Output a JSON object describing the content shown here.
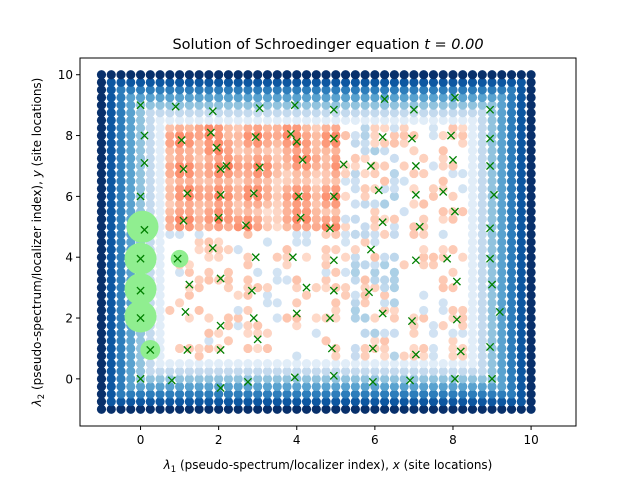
{
  "chart_data": {
    "type": "scatter",
    "title": "Solution of Schroedinger equation t = 0.00",
    "title_main": "Solution of Schroedinger equation ",
    "title_math": "t = 0.00",
    "xlabel_parts": [
      "λ",
      "1",
      " (pseudo-spectrum/localizer index), ",
      "x",
      " (site locations)"
    ],
    "ylabel_parts": [
      "λ",
      "2",
      " (pseudo-spectrum/localizer index), ",
      "y",
      " (site locations)"
    ],
    "xlim": [
      -1.55,
      11.15
    ],
    "ylim": [
      -1.55,
      10.55
    ],
    "xticks": [
      0,
      2,
      4,
      6,
      8,
      10
    ],
    "yticks": [
      0,
      2,
      4,
      6,
      8,
      10
    ],
    "tick_labels_x": [
      "0",
      "2",
      "4",
      "6",
      "8",
      "10"
    ],
    "tick_labels_y": [
      "0",
      "2",
      "4",
      "6",
      "8",
      "10"
    ],
    "pseudo_spectrum_grid": {
      "x_range": [
        -1,
        10
      ],
      "y_range": [
        -1,
        10
      ],
      "step": 0.25,
      "colormap_negative": "Blues",
      "colormap_positive": "Reds",
      "note": "Blue dots = localizer gap (topologically trivial region near boundary); red/orange = spectral concentration near sites"
    },
    "sites": {
      "marker": "x",
      "color": "#008000",
      "points": [
        [
          0.0,
          9.0
        ],
        [
          0.1,
          8.0
        ],
        [
          0.1,
          7.1
        ],
        [
          0.0,
          6.0
        ],
        [
          0.1,
          4.9
        ],
        [
          0.0,
          3.95
        ],
        [
          0.0,
          2.9
        ],
        [
          0.0,
          2.0
        ],
        [
          0.25,
          0.95
        ],
        [
          0.0,
          0.0
        ],
        [
          0.9,
          8.95
        ],
        [
          1.05,
          7.85
        ],
        [
          1.1,
          6.9
        ],
        [
          1.2,
          6.1
        ],
        [
          1.1,
          5.2
        ],
        [
          0.95,
          3.95
        ],
        [
          1.25,
          3.1
        ],
        [
          1.15,
          2.2
        ],
        [
          1.2,
          0.95
        ],
        [
          0.8,
          -0.05
        ],
        [
          1.85,
          8.8
        ],
        [
          1.8,
          8.1
        ],
        [
          1.95,
          7.6
        ],
        [
          2.05,
          6.9
        ],
        [
          2.2,
          7.0
        ],
        [
          2.05,
          6.05
        ],
        [
          2.0,
          5.3
        ],
        [
          1.85,
          4.3
        ],
        [
          2.05,
          3.3
        ],
        [
          2.05,
          1.75
        ],
        [
          2.05,
          0.95
        ],
        [
          2.05,
          -0.3
        ],
        [
          3.05,
          8.9
        ],
        [
          2.95,
          7.95
        ],
        [
          3.05,
          6.95
        ],
        [
          2.9,
          6.1
        ],
        [
          2.7,
          5.05
        ],
        [
          2.95,
          4.0
        ],
        [
          2.85,
          2.9
        ],
        [
          2.9,
          2.0
        ],
        [
          3.0,
          1.3
        ],
        [
          2.75,
          -0.1
        ],
        [
          3.95,
          9.0
        ],
        [
          3.85,
          8.05
        ],
        [
          4.0,
          7.8
        ],
        [
          4.15,
          7.2
        ],
        [
          4.05,
          6.0
        ],
        [
          4.1,
          5.3
        ],
        [
          3.9,
          4.0
        ],
        [
          4.25,
          3.0
        ],
        [
          4.0,
          2.15
        ],
        [
          3.95,
          0.05
        ],
        [
          4.95,
          8.85
        ],
        [
          4.95,
          7.9
        ],
        [
          5.2,
          7.05
        ],
        [
          4.95,
          6.0
        ],
        [
          4.85,
          4.95
        ],
        [
          4.95,
          3.9
        ],
        [
          4.95,
          2.9
        ],
        [
          4.85,
          2.0
        ],
        [
          4.9,
          1.0
        ],
        [
          4.95,
          0.1
        ],
        [
          6.25,
          9.2
        ],
        [
          6.2,
          7.95
        ],
        [
          5.9,
          7.0
        ],
        [
          6.1,
          6.2
        ],
        [
          6.2,
          5.15
        ],
        [
          5.9,
          4.25
        ],
        [
          5.85,
          2.85
        ],
        [
          6.2,
          2.15
        ],
        [
          5.95,
          1.0
        ],
        [
          5.95,
          -0.1
        ],
        [
          7.0,
          8.85
        ],
        [
          6.95,
          7.9
        ],
        [
          7.05,
          7.0
        ],
        [
          7.05,
          6.05
        ],
        [
          7.15,
          5.0
        ],
        [
          7.05,
          3.9
        ],
        [
          6.95,
          1.9
        ],
        [
          7.05,
          0.8
        ],
        [
          6.9,
          -0.05
        ],
        [
          8.05,
          9.25
        ],
        [
          7.95,
          8.0
        ],
        [
          8.0,
          7.2
        ],
        [
          7.75,
          6.15
        ],
        [
          8.05,
          5.5
        ],
        [
          7.85,
          3.95
        ],
        [
          8.1,
          3.2
        ],
        [
          8.1,
          1.95
        ],
        [
          8.2,
          0.9
        ],
        [
          8.05,
          0.0
        ],
        [
          8.95,
          8.85
        ],
        [
          8.95,
          7.9
        ],
        [
          8.95,
          7.0
        ],
        [
          9.05,
          6.05
        ],
        [
          8.95,
          4.95
        ],
        [
          8.95,
          3.95
        ],
        [
          9.0,
          3.1
        ],
        [
          9.2,
          2.2
        ],
        [
          8.95,
          1.05
        ],
        [
          9.0,
          0.0
        ]
      ]
    },
    "wavefunction": {
      "color": "#90ee90",
      "points": [
        {
          "x": 0.05,
          "y": 5.0,
          "amplitude": 1.0
        },
        {
          "x": 0.0,
          "y": 3.95,
          "amplitude": 1.0
        },
        {
          "x": 0.0,
          "y": 2.95,
          "amplitude": 1.0
        },
        {
          "x": 0.0,
          "y": 2.05,
          "amplitude": 1.0
        },
        {
          "x": 0.25,
          "y": 0.95,
          "amplitude": 0.45
        },
        {
          "x": 1.0,
          "y": 3.95,
          "amplitude": 0.35
        }
      ]
    }
  }
}
